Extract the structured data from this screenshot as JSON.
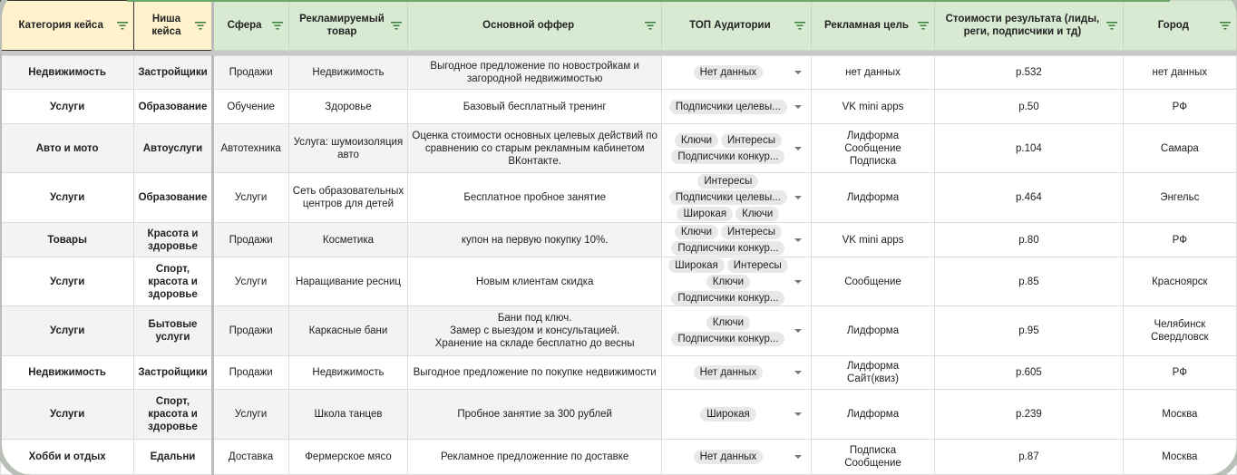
{
  "columns": [
    {
      "label": "Категория кейса",
      "color": "#fff2cc"
    },
    {
      "label": "Ниша кейса",
      "color": "#fff2cc"
    },
    {
      "label": "Сфера",
      "color": "#d9ead3"
    },
    {
      "label": "Рекламируемый товар",
      "color": "#d9ead3"
    },
    {
      "label": "Основной оффер",
      "color": "#d9ead3"
    },
    {
      "label": "ТОП Аудитории",
      "color": "#d9ead3"
    },
    {
      "label": "Рекламная цель",
      "color": "#d9ead3"
    },
    {
      "label": "Стоимости результата (лиды, реги, подписчики и тд)",
      "color": "#d9ead3"
    },
    {
      "label": "Город",
      "color": "#d9ead3"
    }
  ],
  "rows": [
    {
      "category": "Недвижимость",
      "niche": "Застройщики",
      "sphere": "Продажи",
      "product": "Недвижимость",
      "offer": "Выгодное предложение по  новостройкам  и загородной недвижимостью",
      "audiences": [
        "Нет данных"
      ],
      "goal": "нет данных",
      "cost": "р.532",
      "city": "нет данных"
    },
    {
      "category": "Услуги",
      "niche": "Образование",
      "sphere": "Обучение",
      "product": "Здоровье",
      "offer": "Базовый бесплатный тренинг",
      "audiences": [
        "Подписчики целевы..."
      ],
      "goal": "VK mini apps",
      "cost": "р.50",
      "city": "РФ"
    },
    {
      "category": "Авто и мото",
      "niche": "Автоуслуги",
      "sphere": "Автотехника",
      "product": "Услуга: шумоизоляция авто",
      "offer": "Оценка стоимости основных целевых действий по сравнению со старым рекламным кабинетом ВКонтакте.",
      "audiences": [
        "Ключи",
        "Интересы",
        "Подписчики конкур..."
      ],
      "goal": "Лидформа\nСообщение\nПодписка",
      "cost": "р.104",
      "city": "Самара"
    },
    {
      "category": "Услуги",
      "niche": "Образование",
      "sphere": "Услуги",
      "product": "Сеть образовательных центров для детей",
      "offer": "Бесплатное пробное занятие",
      "audiences": [
        "Интересы",
        "Подписчики целевы...",
        "Широкая",
        "Ключи"
      ],
      "goal": "Лидформа",
      "cost": "р.464",
      "city": "Энгельс"
    },
    {
      "category": "Товары",
      "niche": "Красота и здоровье",
      "sphere": "Продажи",
      "product": "Косметика",
      "offer": "купон на первую покупку 10%.",
      "audiences": [
        "Ключи",
        "Интересы",
        "Подписчики конкур..."
      ],
      "goal": "VK mini apps",
      "cost": "р.80",
      "city": "РФ"
    },
    {
      "category": "Услуги",
      "niche": "Спорт, красота и здоровье",
      "sphere": "Услуги",
      "product": "Наращивание ресниц",
      "offer": "Новым клиентам скидка",
      "audiences": [
        "Широкая",
        "Интересы",
        "Ключи",
        "Подписчики конкур..."
      ],
      "goal": "Сообщение",
      "cost": "р.85",
      "city": "Красноярск"
    },
    {
      "category": "Услуги",
      "niche": "Бытовые услуги",
      "sphere": "Продажи",
      "product": "Каркасные бани",
      "offer": "Бани под ключ.\nЗамер с выездом и консультацией.\nХранение на складе бесплатно до весны",
      "audiences": [
        "Ключи",
        "Подписчики конкур..."
      ],
      "goal": "Лидформа",
      "cost": "р.95",
      "city": "Челябинск\nСвердловск"
    },
    {
      "category": "Недвижимость",
      "niche": "Застройщики",
      "sphere": "Продажи",
      "product": "Недвижимость",
      "offer": "Выгодное предложение по  покупке недвижимости",
      "audiences": [
        "Нет данных"
      ],
      "goal": "Лидформа\nСайт(квиз)",
      "cost": "р.605",
      "city": "РФ"
    },
    {
      "category": "Услуги",
      "niche": "Спорт, красота и здоровье",
      "sphere": "Услуги",
      "product": "Школа танцев",
      "offer": "Пробное занятие за 300 рублей",
      "audiences": [
        "Широкая"
      ],
      "goal": "Лидформа",
      "cost": "р.239",
      "city": "Москва"
    },
    {
      "category": "Хобби и отдых",
      "niche": "Едальни",
      "sphere": "Доставка",
      "product": "Фермерское мясо",
      "offer": "Рекламное предложенние по доставке",
      "audiences": [
        "Нет данных"
      ],
      "goal": "Подписка\nСообщение",
      "cost": "р.87",
      "city": "Москва"
    }
  ],
  "icons": {
    "filter": "filter-icon",
    "dropdown": "dropdown-arrow-icon"
  }
}
